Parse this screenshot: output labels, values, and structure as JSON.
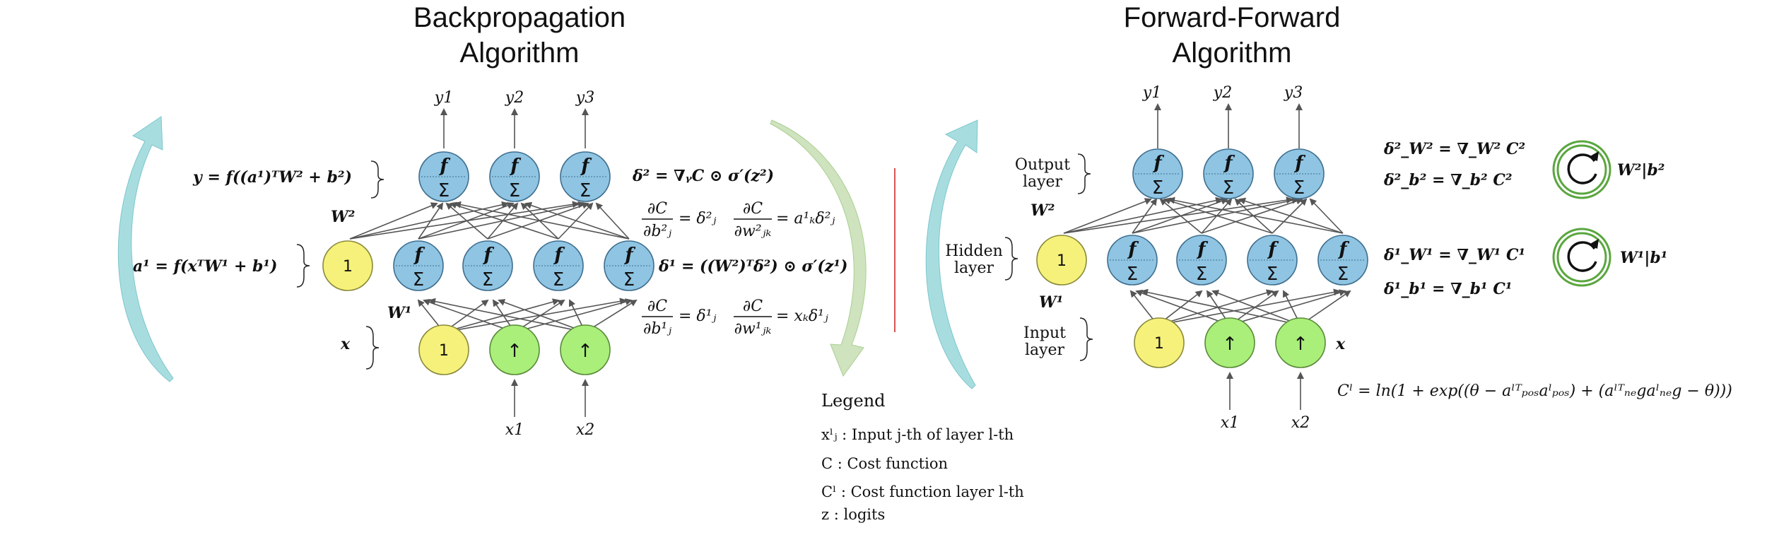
{
  "colors": {
    "neuron_blue": "#8fc4e3",
    "bias_yellow": "#f6f17a",
    "input_green": "#a9ef7a",
    "arrow_teal": "#a8dde0",
    "arrow_green": "#cfe3bf",
    "divider_red": "#d9534f",
    "update_green": "#5aa63f"
  },
  "icons": {
    "neuron": "f-sigma-neuron",
    "update": "refresh-icon"
  },
  "neuron_labels": {
    "f": "f",
    "sum": "Σ",
    "bias": "1",
    "up": "↑"
  },
  "bp": {
    "title_line1": "Backpropagation",
    "title_line2": "Algorithm",
    "outputs": [
      "y1",
      "y2",
      "y3"
    ],
    "inputs": [
      "x1",
      "x2"
    ],
    "eq_y": "y = f((a¹)ᵀW² + b²)",
    "eq_a": "a¹ = f(xᵀW¹ + b¹)",
    "W2": "W²",
    "W1": "W¹",
    "x": "x",
    "delta2": "δ² = ∇ᵧC ⊙ σ′(z²)",
    "delta1": "δ¹ = ((W²)ᵀδ²) ⊙ σ′(z¹)",
    "grad_b2_num": "∂C",
    "grad_b2_den": "∂b²ⱼ",
    "grad_b2_rhs": "= δ²ⱼ",
    "grad_w2_num": "∂C",
    "grad_w2_den": "∂w²ⱼₖ",
    "grad_w2_rhs": "= a¹ₖδ²ⱼ",
    "grad_b1_num": "∂C",
    "grad_b1_den": "∂b¹ⱼ",
    "grad_b1_rhs": "= δ¹ⱼ",
    "grad_w1_num": "∂C",
    "grad_w1_den": "∂w¹ⱼₖ",
    "grad_w1_rhs": "= xₖδ¹ⱼ"
  },
  "ff": {
    "title_line1": "Forward-Forward",
    "title_line2": "Algorithm",
    "outputs": [
      "y1",
      "y2",
      "y3"
    ],
    "inputs": [
      "x1",
      "x2"
    ],
    "output_layer_1": "Output",
    "output_layer_2": "layer",
    "hidden_layer_1": "Hidden",
    "hidden_layer_2": "layer",
    "input_layer_1": "Input",
    "input_layer_2": "layer",
    "W2": "W²",
    "W1": "W¹",
    "x": "x",
    "dW2": "δ²_W² = ∇_W² C²",
    "db2": "δ²_b² = ∇_b² C²",
    "dW1": "δ¹_W¹ = ∇_W¹ C¹",
    "db1": "δ¹_b¹ = ∇_b¹ C¹",
    "upd2": "W²|b²",
    "upd1": "W¹|b¹",
    "cost": "Cˡ = ln(1 + exp((θ − aˡᵀₚₒₛaˡₚₒₛ) + (aˡᵀₙₑgaˡₙₑg − θ)))"
  },
  "legend": {
    "title": "Legend",
    "item1": "xˡⱼ : Input j-th of layer l-th",
    "item2": "C : Cost function",
    "item3": "Cˡ : Cost function layer l-th",
    "item4": "z : logits"
  }
}
